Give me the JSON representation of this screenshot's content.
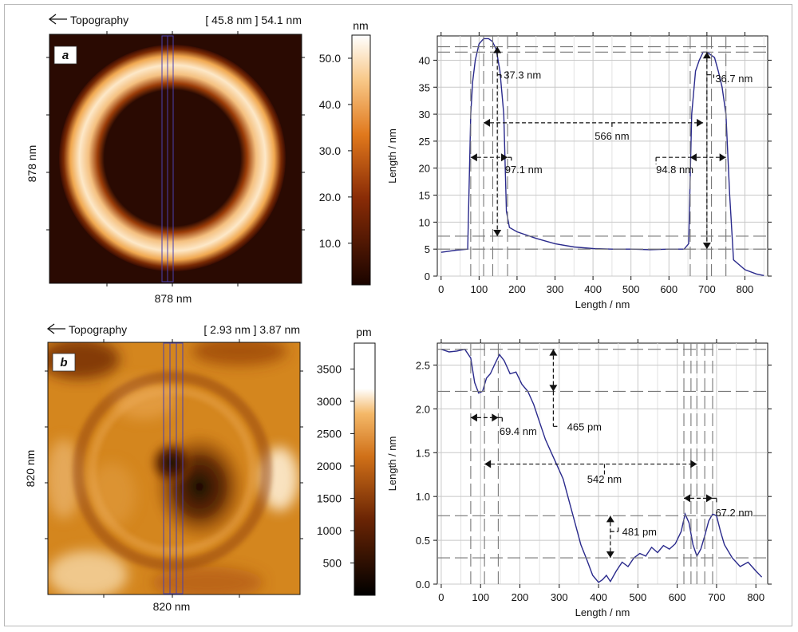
{
  "panels": [
    {
      "letter": "a",
      "topo_label": "Topography",
      "range_text": "[ 45.8 nm ] 54.1 nm",
      "x_size_label": "878 nm",
      "y_size_label": "878 nm",
      "colorbar_unit": "nm",
      "colorbar_ticks": [
        "50.0",
        "40.0",
        "30.0",
        "20.0",
        "10.0"
      ],
      "colorbar_tick_values": [
        50,
        40,
        30,
        20,
        10
      ],
      "colorbar_range": [
        1,
        55
      ],
      "colors": {
        "low": "#1a0400",
        "mid": "#b4480c",
        "high": "#ffffff"
      }
    },
    {
      "letter": "b",
      "topo_label": "Topography",
      "range_text": "[ 2.93 nm ] 3.87 nm",
      "x_size_label": "820 nm",
      "y_size_label": "820 nm",
      "colorbar_unit": "pm",
      "colorbar_ticks": [
        "3500",
        "3000",
        "2500",
        "2000",
        "1500",
        "1000",
        "500"
      ],
      "colorbar_tick_values": [
        3500,
        3000,
        2500,
        2000,
        1500,
        1000,
        500
      ],
      "colorbar_range": [
        0,
        3900
      ],
      "colors": {
        "low": "#000000",
        "mid": "#c8640f",
        "high": "#ffffff"
      }
    }
  ],
  "chart_data": [
    {
      "type": "line",
      "xlabel": "Length / nm",
      "ylabel": "Length / nm",
      "xlim": [
        -10,
        860
      ],
      "ylim": [
        0,
        44.5
      ],
      "xticks": [
        0,
        100,
        200,
        300,
        400,
        500,
        600,
        700,
        800
      ],
      "yticks": [
        0,
        5,
        10,
        15,
        20,
        25,
        30,
        35,
        40
      ],
      "grid": true,
      "line_color": "#2a2a8c",
      "x": [
        0,
        40,
        70,
        78,
        83,
        90,
        100,
        112,
        125,
        135,
        145,
        155,
        165,
        172,
        180,
        200,
        250,
        300,
        350,
        400,
        450,
        500,
        550,
        600,
        640,
        652,
        660,
        670,
        680,
        690,
        700,
        710,
        720,
        730,
        740,
        750,
        760,
        770,
        800,
        830,
        850
      ],
      "y": [
        4.4,
        4.8,
        5,
        30,
        36,
        40,
        43,
        44,
        44,
        43.5,
        42,
        38,
        30,
        12,
        9,
        8.2,
        7,
        6,
        5.4,
        5.1,
        5,
        5,
        4.9,
        5,
        5,
        6,
        30,
        38,
        40,
        41.5,
        41.5,
        41,
        40.5,
        38,
        35,
        30,
        15,
        3,
        1.2,
        0.4,
        0.1
      ],
      "annotations": [
        "37.3 nm",
        "566 nm",
        "97.1 nm",
        "94.8 nm",
        "36.7 nm"
      ]
    },
    {
      "type": "line",
      "xlabel": "Length / nm",
      "ylabel": "Length / nm",
      "xlim": [
        -10,
        830
      ],
      "ylim": [
        0,
        2.75
      ],
      "xticks": [
        0,
        100,
        200,
        300,
        400,
        500,
        600,
        700,
        800
      ],
      "yticks": [
        0.0,
        0.5,
        1.0,
        1.5,
        2.0,
        2.5
      ],
      "ytick_labels": [
        "0.0",
        "0.5",
        "1.0",
        "1.5",
        "2.0",
        "2.5"
      ],
      "grid": true,
      "line_color": "#2a2a8c",
      "x": [
        0,
        20,
        40,
        60,
        75,
        85,
        95,
        105,
        115,
        125,
        135,
        148,
        160,
        175,
        190,
        205,
        220,
        235,
        250,
        265,
        280,
        295,
        310,
        325,
        340,
        355,
        370,
        385,
        400,
        410,
        420,
        430,
        445,
        460,
        475,
        490,
        505,
        520,
        535,
        550,
        565,
        580,
        595,
        610,
        620,
        630,
        640,
        650,
        660,
        670,
        680,
        690,
        700,
        710,
        720,
        740,
        760,
        780,
        800,
        815
      ],
      "y": [
        2.68,
        2.65,
        2.66,
        2.68,
        2.58,
        2.3,
        2.18,
        2.2,
        2.35,
        2.4,
        2.5,
        2.62,
        2.55,
        2.4,
        2.42,
        2.28,
        2.2,
        2.05,
        1.85,
        1.65,
        1.5,
        1.35,
        1.2,
        0.95,
        0.7,
        0.45,
        0.28,
        0.1,
        0.02,
        0.05,
        0.1,
        0.03,
        0.15,
        0.25,
        0.2,
        0.3,
        0.35,
        0.32,
        0.42,
        0.36,
        0.44,
        0.4,
        0.46,
        0.6,
        0.8,
        0.7,
        0.45,
        0.32,
        0.4,
        0.55,
        0.72,
        0.8,
        0.78,
        0.6,
        0.45,
        0.3,
        0.2,
        0.25,
        0.15,
        0.08
      ],
      "annotations": [
        "69.4 nm",
        "465 pm",
        "542 nm",
        "67.2 nm",
        "481 pm"
      ]
    }
  ]
}
